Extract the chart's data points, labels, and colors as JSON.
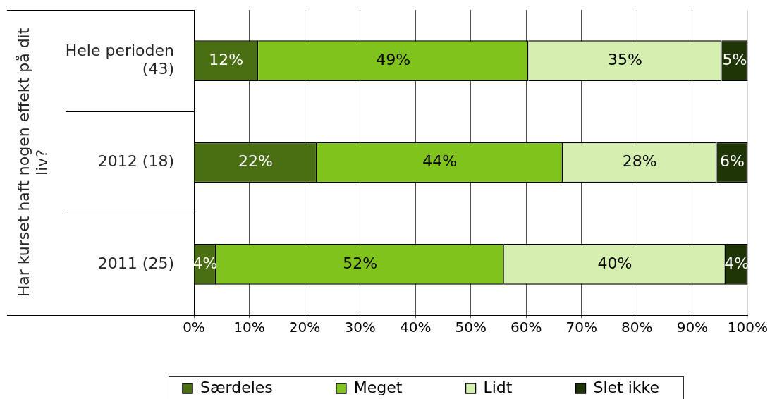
{
  "chart_data": {
    "type": "bar",
    "orientation": "horizontal",
    "stacked": true,
    "ylabel": "Har kurset haft nogen effekt på dit liv?",
    "categories": [
      "Hele perioden (43)",
      "2012 (18)",
      "2011 (25)"
    ],
    "series": [
      {
        "name": "Særdeles",
        "color": "#4a6e12",
        "values": [
          11.6,
          22.2,
          4
        ],
        "value_labels": [
          "12%",
          "22%",
          "4%"
        ]
      },
      {
        "name": "Meget",
        "color": "#80c31c",
        "values": [
          48.8,
          44.4,
          52
        ],
        "value_labels": [
          "49%",
          "44%",
          "52%"
        ]
      },
      {
        "name": "Lidt",
        "color": "#d4efb0",
        "values": [
          34.9,
          27.8,
          40
        ],
        "value_labels": [
          "35%",
          "28%",
          "40%"
        ]
      },
      {
        "name": "Slet ikke",
        "color": "#1f3505",
        "values": [
          4.7,
          5.6,
          4
        ],
        "value_labels": [
          "5%",
          "6%",
          "4%"
        ]
      }
    ],
    "xlim": [
      0,
      100
    ],
    "xticks": [
      {
        "value": 0,
        "label": "0%"
      },
      {
        "value": 10,
        "label": "10%"
      },
      {
        "value": 20,
        "label": "20%"
      },
      {
        "value": 30,
        "label": "30%"
      },
      {
        "value": 40,
        "label": "40%"
      },
      {
        "value": 50,
        "label": "50%"
      },
      {
        "value": 60,
        "label": "60%"
      },
      {
        "value": 70,
        "label": "70%"
      },
      {
        "value": 80,
        "label": "80%"
      },
      {
        "value": 90,
        "label": "90%"
      },
      {
        "value": 100,
        "label": "100%"
      }
    ],
    "grid": "x",
    "legend": "bottom"
  }
}
